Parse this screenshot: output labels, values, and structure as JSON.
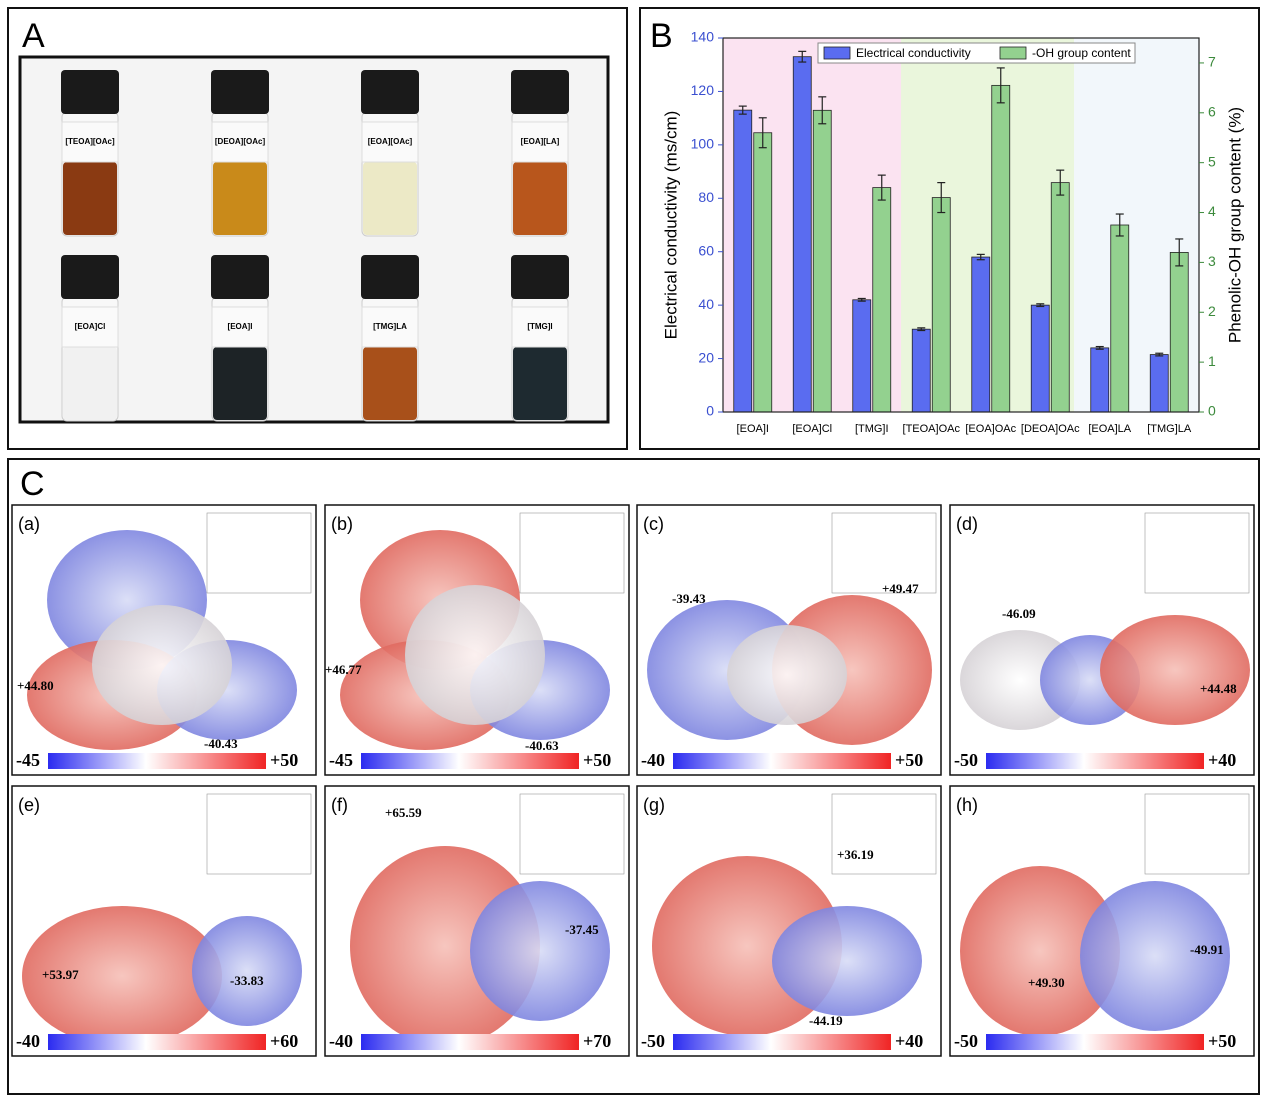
{
  "panel_a": {
    "letter": "A",
    "vials": [
      "[TEOA][OAc]",
      "[DEOA][OAc]",
      "[EOA][OAc]",
      "[EOA][LA]",
      "[EOA]Cl",
      "[EOA]I",
      "[TMG]LA",
      "[TMG]I"
    ]
  },
  "chart_data": {
    "type": "bar",
    "letter": "B",
    "categories": [
      "[EOA]I",
      "[EOA]Cl",
      "[TMG]I",
      "[TEOA]OAc",
      "[EOA]OAc",
      "[DEOA]OAc",
      "[EOA]LA",
      "[TMG]LA"
    ],
    "series": [
      {
        "name": "Electrical conductivity",
        "color": "#5a6cf0",
        "values": [
          113,
          133,
          42,
          31,
          58,
          40,
          24,
          21.5
        ],
        "errors": [
          1.5,
          2,
          0.5,
          0.5,
          1,
          0.5,
          0.5,
          0.5
        ]
      },
      {
        "name": "-OH group content",
        "color": "#93d18f",
        "axis": "y2",
        "values": [
          5.6,
          6.05,
          4.5,
          4.3,
          6.55,
          4.6,
          3.75,
          3.2
        ],
        "errors": [
          0.3,
          0.27,
          0.25,
          0.3,
          0.35,
          0.25,
          0.22,
          0.27
        ]
      }
    ],
    "y_label": "Electrical conductivity (ms/cm)",
    "y2_label": "Phenolic-OH group content (%)",
    "ylim": [
      0,
      140
    ],
    "yticks": [
      0,
      20,
      40,
      60,
      80,
      100,
      120,
      140
    ],
    "y2lim": [
      0,
      7.5
    ],
    "y2ticks": [
      0,
      1,
      2,
      3,
      4,
      5,
      6,
      7
    ],
    "legend": "top"
  },
  "panel_c": {
    "letter": "C",
    "panels": [
      {
        "label": "(a)",
        "min": "-45",
        "max": "+50",
        "annotations": [
          "+44.80",
          "-40.43"
        ]
      },
      {
        "label": "(b)",
        "min": "-45",
        "max": "+50",
        "annotations": [
          "+46.77",
          "-40.63"
        ]
      },
      {
        "label": "(c)",
        "min": "-40",
        "max": "+50",
        "annotations": [
          "-39.43",
          "+49.47"
        ]
      },
      {
        "label": "(d)",
        "min": "-50",
        "max": "+40",
        "annotations": [
          "-46.09",
          "+44.48"
        ]
      },
      {
        "label": "(e)",
        "min": "-40",
        "max": "+60",
        "annotations": [
          "+53.97",
          "-33.83"
        ]
      },
      {
        "label": "(f)",
        "min": "-40",
        "max": "+70",
        "annotations": [
          "+65.59",
          "-37.45"
        ]
      },
      {
        "label": "(g)",
        "min": "-50",
        "max": "+40",
        "annotations": [
          "+36.19",
          "-44.19"
        ]
      },
      {
        "label": "(h)",
        "min": "-50",
        "max": "+50",
        "annotations": [
          "+49.30",
          "-49.91"
        ]
      }
    ]
  }
}
